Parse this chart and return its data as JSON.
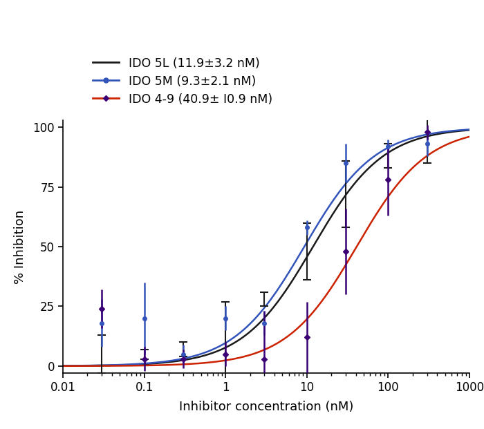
{
  "xlabel": "Inhibitor concentration (nM)",
  "ylabel": "% Inhibition",
  "ylim": [
    -3,
    103
  ],
  "yticks": [
    0,
    25,
    50,
    75,
    100
  ],
  "xticks_major": [
    0.01,
    0.1,
    1,
    10,
    100,
    1000
  ],
  "xtick_labels": [
    "0.01",
    "0.1",
    "1",
    "10",
    "100",
    "1000"
  ],
  "legend": [
    {
      "label": "IDO 5L (11.9±3.2 nM)",
      "line_color": "#1a1a1a",
      "marker": "none"
    },
    {
      "label": "IDO 5M (9.3±2.1 nM)",
      "line_color": "#3355bb",
      "marker": "o"
    },
    {
      "label": "IDO 4-9 (40.9± I0.9 nM)",
      "line_color": "#cc2200",
      "marker": "D"
    }
  ],
  "series": [
    {
      "name": "IDO 5L",
      "line_color": "#1a1a1a",
      "marker": null,
      "marker_color": "#1a1a1a",
      "ec50": 11.9,
      "hill": 1.0,
      "x_data": [
        0.03,
        0.1,
        0.3,
        1.0,
        3.0,
        10.0,
        30.0,
        100.0,
        300.0
      ],
      "y_data": [
        5.0,
        5.0,
        7.0,
        9.0,
        28.0,
        48.0,
        72.0,
        88.0,
        95.0
      ],
      "yerr": [
        8.0,
        2.0,
        3.0,
        18.0,
        3.0,
        12.0,
        14.0,
        5.0,
        10.0
      ]
    },
    {
      "name": "IDO 5M",
      "line_color": "#3355bb",
      "marker": "o",
      "marker_color": "#3355bb",
      "ec50": 9.3,
      "hill": 1.0,
      "x_data": [
        0.03,
        0.1,
        0.3,
        1.0,
        3.0,
        10.0,
        30.0,
        100.0,
        300.0
      ],
      "y_data": [
        18.0,
        20.0,
        5.0,
        20.0,
        18.0,
        58.0,
        85.0,
        92.0,
        93.0
      ],
      "yerr": [
        10.0,
        15.0,
        4.0,
        5.0,
        5.0,
        3.0,
        8.0,
        3.0,
        5.0
      ]
    },
    {
      "name": "IDO 4-9",
      "line_color": "#cc2200",
      "marker": "D",
      "marker_color": "#3b0075",
      "ec50": 40.9,
      "hill": 1.0,
      "x_data": [
        0.03,
        0.1,
        0.3,
        1.0,
        3.0,
        10.0,
        30.0,
        100.0,
        300.0
      ],
      "y_data": [
        24.0,
        3.0,
        3.0,
        5.0,
        3.0,
        12.0,
        48.0,
        78.0,
        98.0
      ],
      "yerr": [
        8.0,
        5.0,
        4.0,
        5.0,
        20.0,
        15.0,
        18.0,
        15.0,
        3.0
      ]
    }
  ]
}
